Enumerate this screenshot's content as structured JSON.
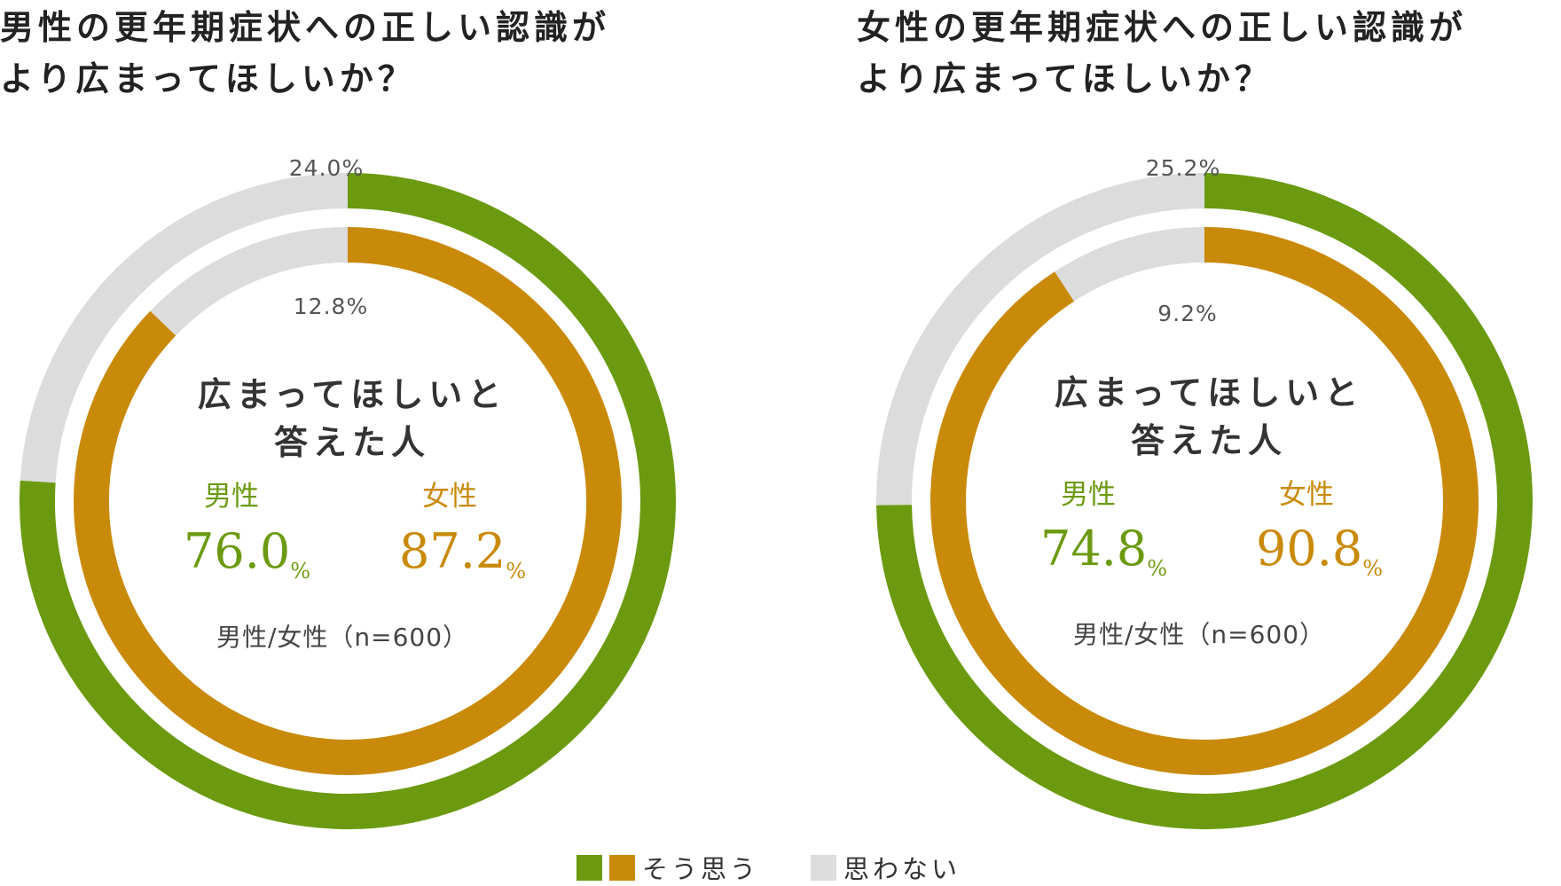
{
  "legend": {
    "yes_label": "そう思う",
    "no_label": "思わない"
  },
  "colors": {
    "men": "#6b9a10",
    "women": "#c98a0a",
    "no": "#dcdcdc",
    "text": "#333333",
    "pct_label": "#555555"
  },
  "charts": [
    {
      "title": "男性の更年期症状への正しい認識が\nより広まってほしいか？",
      "center_heading_line1": "広まってほしいと",
      "center_heading_line2": "答えた人",
      "men_label": "男性",
      "men_value": "76.0",
      "women_label": "女性",
      "women_value": "87.2",
      "unit": "%",
      "note": "男性/女性（n=600）",
      "outer_no_label": "24.0%",
      "inner_no_label": "12.8%"
    },
    {
      "title": "女性の更年期症状への正しい認識が\nより広まってほしいか？",
      "center_heading_line1": "広まってほしいと",
      "center_heading_line2": "答えた人",
      "men_label": "男性",
      "men_value": "74.8",
      "women_label": "女性",
      "women_value": "90.8",
      "unit": "%",
      "note": "男性/女性（n=600）",
      "outer_no_label": "25.2%",
      "inner_no_label": "9.2%"
    }
  ],
  "chart_data": [
    {
      "type": "pie",
      "title": "男性の更年期症状への正しい認識がより広まってほしいか？",
      "categories": [
        "そう思う",
        "思わない"
      ],
      "series": [
        {
          "name": "男性",
          "values": [
            76.0,
            24.0
          ]
        },
        {
          "name": "女性",
          "values": [
            87.2,
            12.8
          ]
        }
      ]
    },
    {
      "type": "pie",
      "title": "女性の更年期症状への正しい認識がより広まってほしいか？",
      "categories": [
        "そう思う",
        "思わない"
      ],
      "series": [
        {
          "name": "男性",
          "values": [
            74.8,
            25.2
          ]
        },
        {
          "name": "女性",
          "values": [
            90.8,
            9.2
          ]
        }
      ]
    }
  ]
}
